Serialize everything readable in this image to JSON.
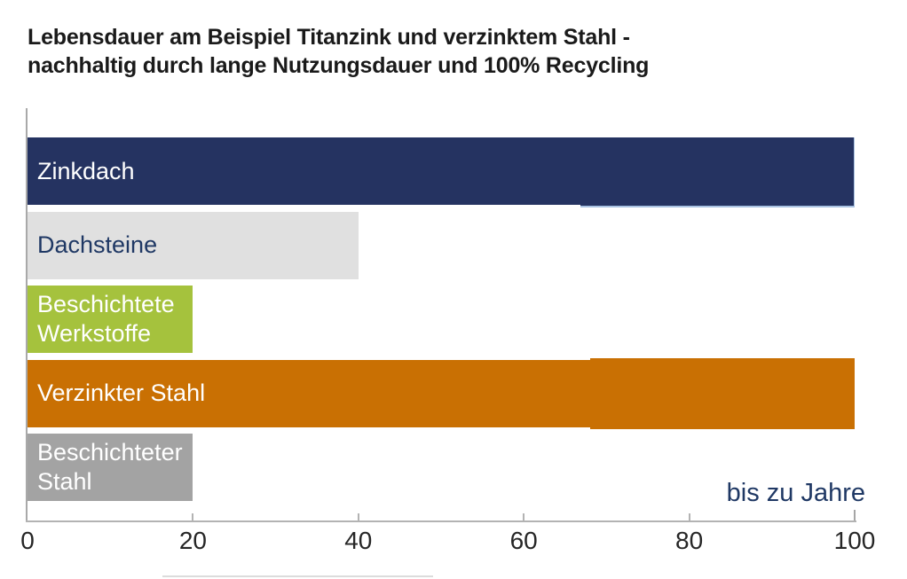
{
  "title": {
    "line1": "Lebensdauer am Beispiel Titanzink und verzinktem Stahl -",
    "line2": "nachhaltig durch lange Nutzungsdauer und 100% Recycling"
  },
  "chart_data": {
    "type": "bar",
    "orientation": "horizontal",
    "title": "Lebensdauer am Beispiel Titanzink und verzinktem Stahl - nachhaltig durch lange Nutzungsdauer und 100% Recycling",
    "unit_label": "bis zu Jahre",
    "xlabel": "",
    "ylabel": "",
    "xlim": [
      0,
      100
    ],
    "x_ticks": [
      0,
      20,
      40,
      60,
      80,
      100
    ],
    "grid": false,
    "legend": false,
    "categories": [
      "Zinkdach",
      "Dachsteine",
      "Beschichtete Werkstoffe",
      "Verzinkter Stahl",
      "Beschichteter Stahl"
    ],
    "values": [
      100,
      40,
      20,
      100,
      20
    ],
    "bars": [
      {
        "label": "Zinkdach",
        "value": 100,
        "color": "#253361",
        "label_color": "#ffffff"
      },
      {
        "label": "Dachsteine",
        "value": 40,
        "color": "#e0e0e0",
        "label_color": "#1f3864"
      },
      {
        "label": "Beschichtete Werkstoffe",
        "value": 20,
        "color": "#a5c23d",
        "label_color": "#ffffff"
      },
      {
        "label": "Verzinkter Stahl",
        "value": 100,
        "color": "#c97003",
        "label_color": "#ffffff"
      },
      {
        "label": "Beschichteter Stahl",
        "value": 20,
        "color": "#a3a3a3",
        "label_color": "#ffffff"
      }
    ],
    "colors": {
      "axis_line": "#b3b3b3",
      "y_axis_line": "#a9a9a9",
      "tick_label": "#262626",
      "unit_label": "#1f3864",
      "title": "#1a1a1a"
    }
  }
}
